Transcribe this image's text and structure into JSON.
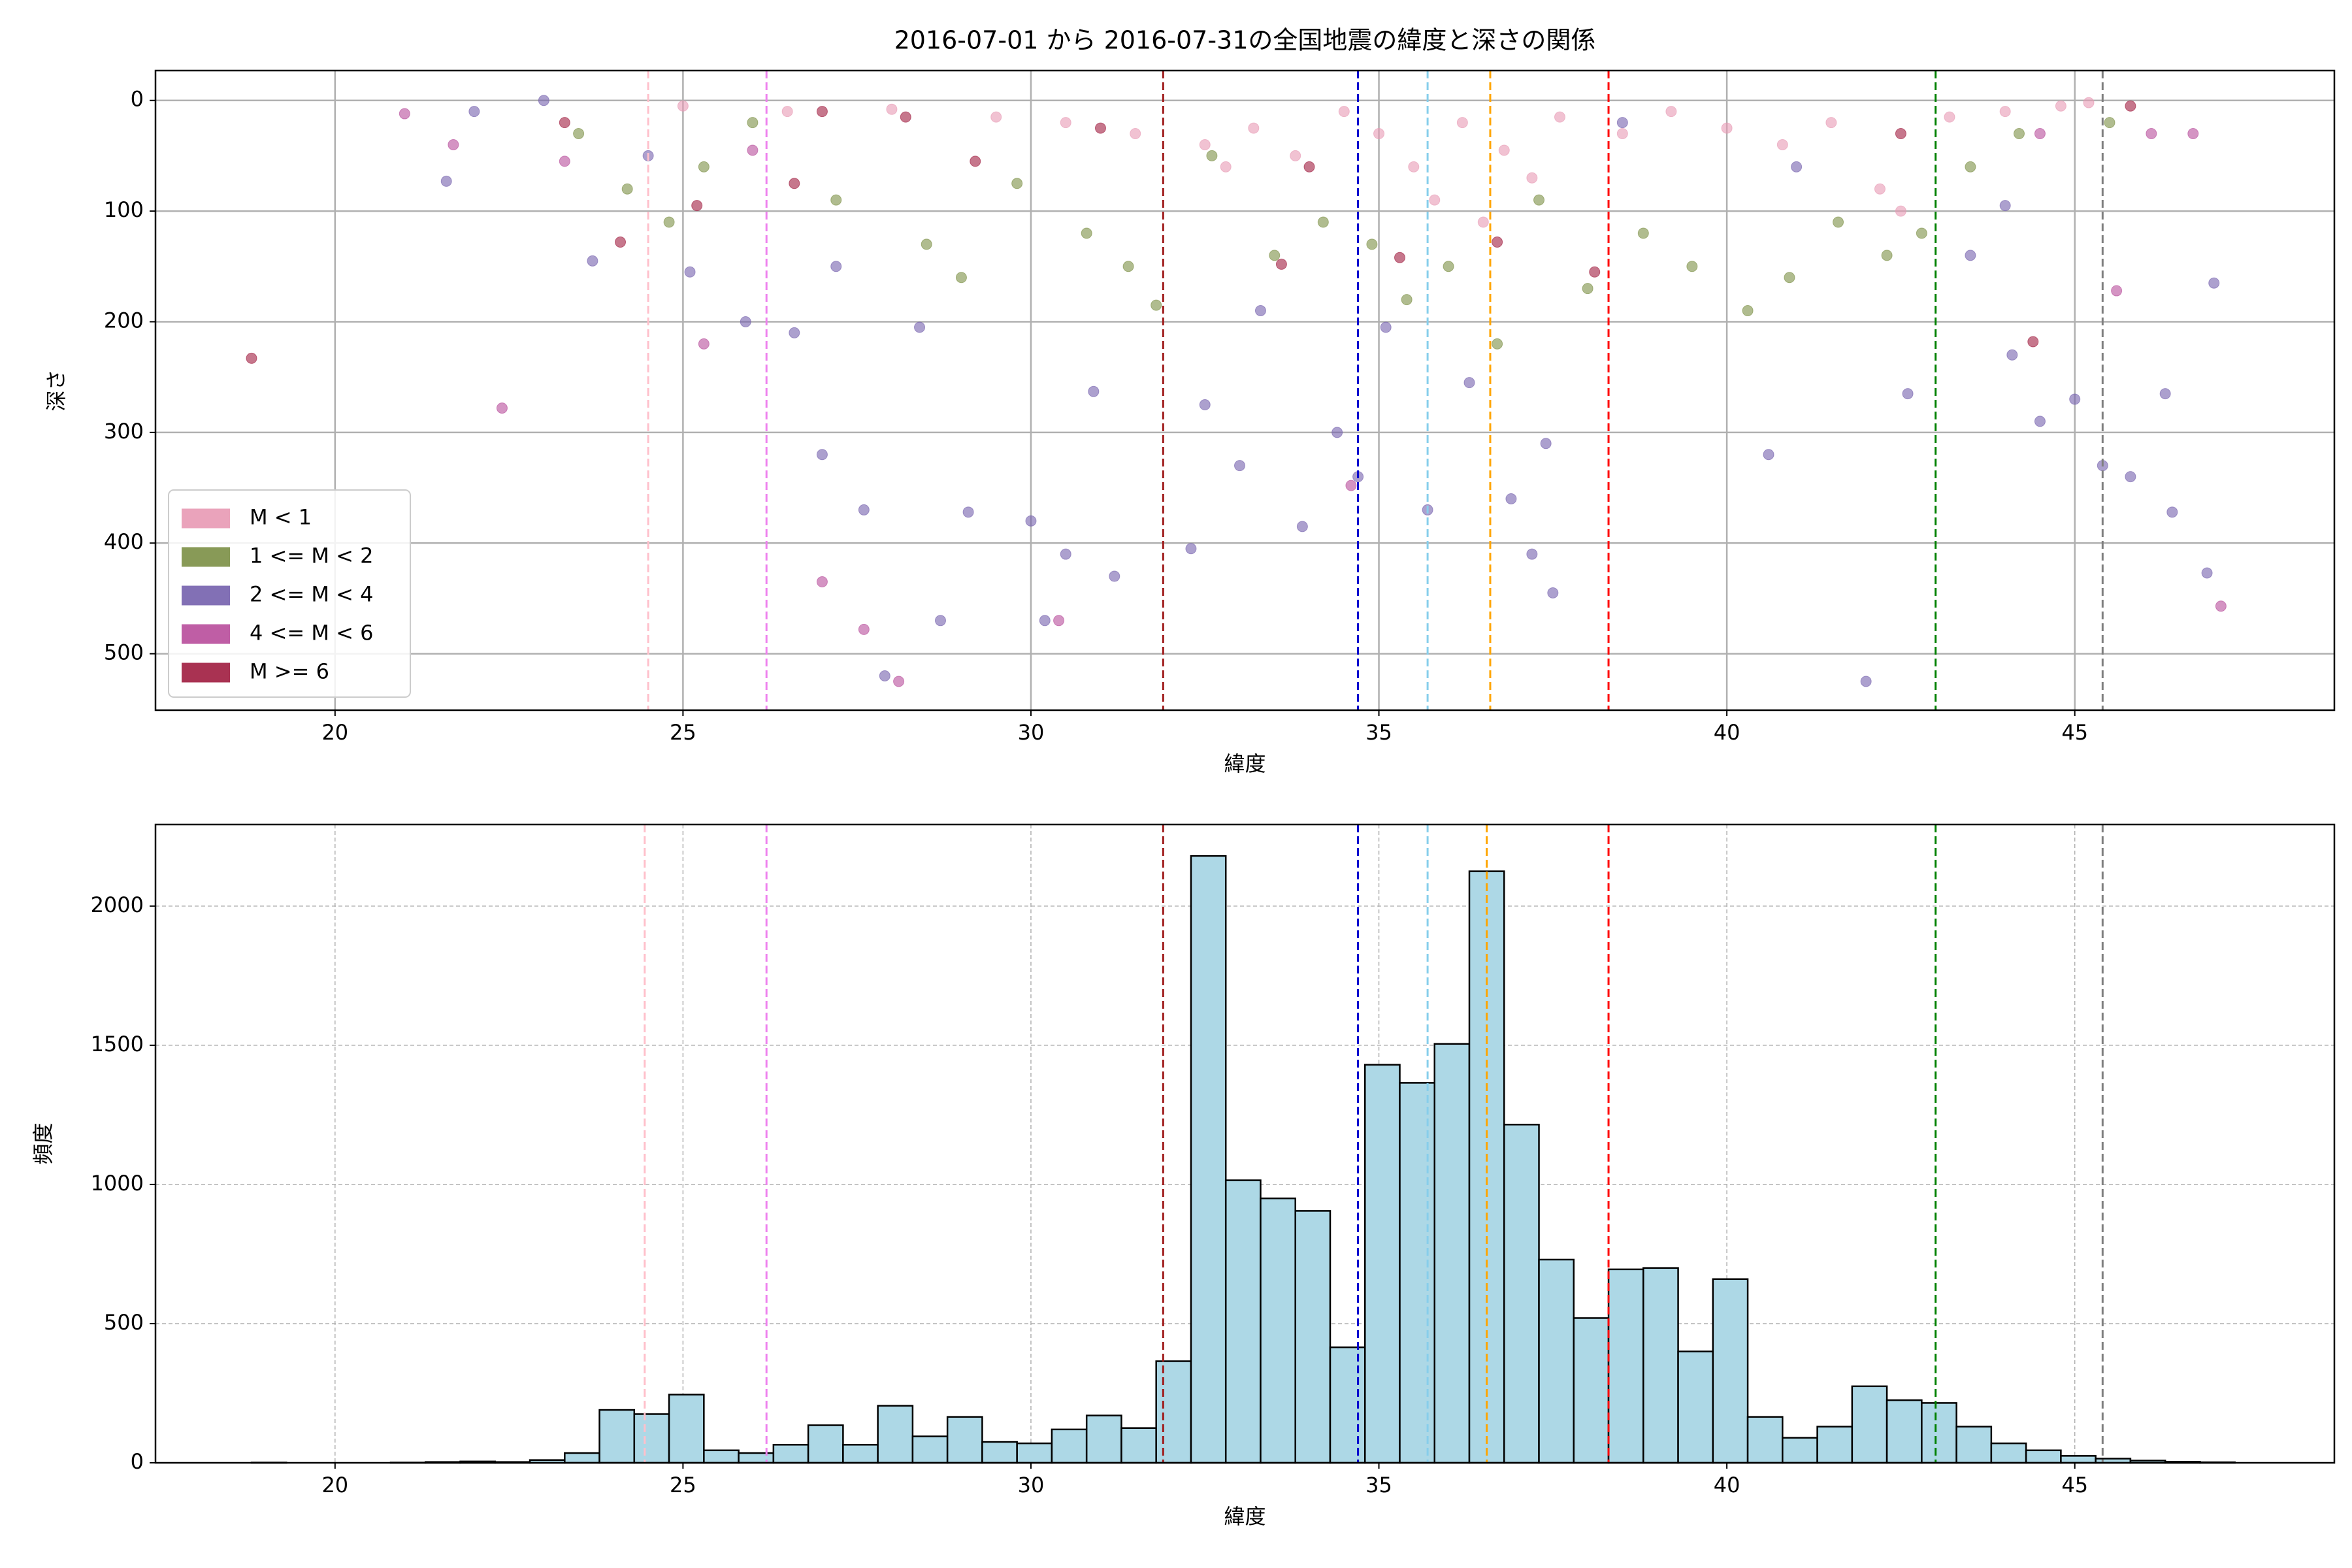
{
  "chart_data": [
    {
      "type": "scatter",
      "title": "2016-07-01 から 2016-07-31の全国地震の緯度と深さの関係",
      "xlabel": "緯度",
      "ylabel": "深さ",
      "xlim": [
        17.42,
        48.73
      ],
      "ylim": [
        -27,
        551
      ],
      "y_inverted": true,
      "xticks": [
        20,
        25,
        30,
        35,
        40,
        45
      ],
      "yticks": [
        0,
        100,
        200,
        300,
        400,
        500
      ],
      "grid": true,
      "grid_style": "solid",
      "legend_loc": "lower left",
      "opacity": 0.6,
      "series": [
        {
          "name": "1 <= M < 2",
          "color": "#7b8f45",
          "x": [
            23.5,
            24.2,
            24.8,
            25.3,
            26.0,
            27.2,
            28.5,
            29.0,
            29.8,
            30.8,
            31.4,
            31.8,
            32.6,
            33.5,
            34.2,
            34.9,
            35.4,
            36.0,
            36.7,
            37.3,
            38.0,
            38.8,
            39.5,
            40.3,
            40.9,
            41.6,
            42.3,
            42.8,
            43.5,
            44.2,
            45.5
          ],
          "values": [
            30,
            80,
            110,
            60,
            20,
            90,
            130,
            160,
            75,
            120,
            150,
            185,
            50,
            140,
            110,
            130,
            180,
            150,
            220,
            90,
            170,
            120,
            150,
            190,
            160,
            110,
            140,
            120,
            60,
            30,
            20
          ]
        },
        {
          "name": "2 <= M < 4",
          "color": "#7460ad",
          "x": [
            21.6,
            22.0,
            23.0,
            23.7,
            24.5,
            25.1,
            25.9,
            26.6,
            27.2,
            27.0,
            27.6,
            27.9,
            28.4,
            28.7,
            29.1,
            30.0,
            30.2,
            30.5,
            30.9,
            31.2,
            32.3,
            32.5,
            33.0,
            33.3,
            33.9,
            34.4,
            34.7,
            35.1,
            35.7,
            36.3,
            36.9,
            37.2,
            37.5,
            37.4,
            40.6,
            42.0,
            42.6,
            43.5,
            44.1,
            44.5,
            45.0,
            45.4,
            45.8,
            46.3,
            46.4,
            46.9,
            47.0,
            44.0,
            38.5,
            41.0
          ],
          "values": [
            73,
            10,
            0,
            145,
            50,
            155,
            200,
            210,
            150,
            320,
            370,
            520,
            205,
            470,
            372,
            380,
            470,
            410,
            263,
            430,
            405,
            275,
            330,
            190,
            385,
            300,
            340,
            205,
            370,
            255,
            360,
            410,
            445,
            310,
            320,
            525,
            265,
            140,
            230,
            290,
            270,
            330,
            340,
            265,
            372,
            427,
            165,
            95,
            20,
            60
          ]
        },
        {
          "name": "4 <= M < 6",
          "color": "#b84d9b",
          "x": [
            21.0,
            21.7,
            22.4,
            25.3,
            27.0,
            27.6,
            28.1,
            30.4,
            34.6,
            45.6,
            47.1,
            46.1,
            46.7,
            44.5,
            23.3,
            26.0
          ],
          "values": [
            12,
            40,
            278,
            220,
            435,
            478,
            525,
            470,
            348,
            172,
            457,
            30,
            30,
            30,
            55,
            45
          ]
        },
        {
          "name": "M < 1",
          "color": "#e899b4",
          "x": [
            25.0,
            26.5,
            28.0,
            29.5,
            30.5,
            31.5,
            32.5,
            32.8,
            33.2,
            33.8,
            34.5,
            35.0,
            35.5,
            35.8,
            36.2,
            36.5,
            36.8,
            37.2,
            37.6,
            38.5,
            39.2,
            40.0,
            40.8,
            41.5,
            42.2,
            42.5,
            43.2,
            44.0,
            44.8,
            45.2
          ],
          "values": [
            5,
            10,
            8,
            15,
            20,
            30,
            40,
            60,
            25,
            50,
            10,
            30,
            60,
            90,
            20,
            110,
            45,
            70,
            15,
            30,
            10,
            25,
            40,
            20,
            80,
            100,
            15,
            10,
            5,
            2
          ]
        },
        {
          "name": "M >= 6",
          "color": "#a01c3f",
          "x": [
            18.8,
            23.3,
            24.1,
            25.2,
            26.6,
            28.2,
            29.2,
            31.0,
            33.6,
            35.3,
            36.7,
            38.1,
            42.5,
            44.4,
            45.8,
            27.0,
            34.0
          ],
          "values": [
            233,
            20,
            128,
            95,
            75,
            15,
            55,
            25,
            148,
            142,
            128,
            155,
            30,
            218,
            5,
            10,
            60
          ]
        }
      ],
      "legend_order": [
        3,
        0,
        1,
        2,
        4
      ],
      "vlines": [
        {
          "x": 24.5,
          "color": "pink"
        },
        {
          "x": 26.2,
          "color": "violet"
        },
        {
          "x": 31.9,
          "color": "#a01c1c"
        },
        {
          "x": 34.7,
          "color": "#0000cd"
        },
        {
          "x": 35.7,
          "color": "skyblue"
        },
        {
          "x": 36.6,
          "color": "orange"
        },
        {
          "x": 38.3,
          "color": "red"
        },
        {
          "x": 43.0,
          "color": "green"
        },
        {
          "x": 45.4,
          "color": "gray"
        }
      ]
    },
    {
      "type": "histogram",
      "xlabel": "緯度",
      "ylabel": "頻度",
      "xlim": [
        17.42,
        48.73
      ],
      "ylim": [
        0,
        2293
      ],
      "xticks": [
        20,
        25,
        30,
        35,
        40,
        45
      ],
      "yticks": [
        0,
        500,
        1000,
        1500,
        2000
      ],
      "grid": true,
      "grid_style": "dashed",
      "color": "#add8e6",
      "edgecolor": "#000000",
      "bins": [
        18.8,
        19.3,
        19.8,
        20.3,
        20.8,
        21.3,
        21.8,
        22.3,
        22.8,
        23.3,
        23.8,
        24.3,
        24.8,
        25.3,
        25.8,
        26.3,
        26.8,
        27.3,
        27.8,
        28.3,
        28.8,
        29.3,
        29.8,
        30.3,
        30.8,
        31.3,
        31.8,
        32.3,
        32.8,
        33.3,
        33.8,
        34.3,
        34.8,
        35.3,
        35.8,
        36.3,
        36.8,
        37.3,
        37.8,
        38.3,
        38.8,
        39.3,
        39.8,
        40.3,
        40.8,
        41.3,
        41.8,
        42.3,
        42.8,
        43.3,
        43.8,
        44.3,
        44.8,
        45.3,
        45.8,
        46.3,
        46.8,
        47.3
      ],
      "values": [
        1,
        0,
        0,
        0,
        1,
        3,
        5,
        3,
        10,
        35,
        190,
        175,
        245,
        45,
        35,
        65,
        135,
        65,
        205,
        95,
        165,
        75,
        70,
        120,
        170,
        125,
        365,
        2180,
        1015,
        950,
        905,
        415,
        1430,
        1365,
        1505,
        2125,
        1215,
        730,
        520,
        695,
        700,
        400,
        660,
        165,
        90,
        130,
        275,
        225,
        215,
        130,
        70,
        45,
        25,
        15,
        8,
        4,
        2
      ],
      "vlines": [
        {
          "x": 24.45,
          "color": "pink"
        },
        {
          "x": 26.2,
          "color": "violet"
        },
        {
          "x": 31.9,
          "color": "#a01c1c"
        },
        {
          "x": 34.7,
          "color": "#0000cd"
        },
        {
          "x": 35.7,
          "color": "skyblue"
        },
        {
          "x": 36.55,
          "color": "orange"
        },
        {
          "x": 38.3,
          "color": "red"
        },
        {
          "x": 43.0,
          "color": "green"
        },
        {
          "x": 45.4,
          "color": "gray"
        }
      ]
    }
  ]
}
